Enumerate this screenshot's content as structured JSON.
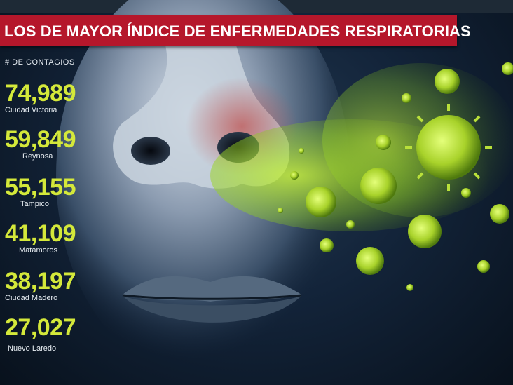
{
  "title": "LOS DE MAYOR ÍNDICE DE ENFERMEDADES RESPIRATORIAS",
  "subtitle": "# DE CONTAGIOS",
  "stats": [
    {
      "value": "74,989",
      "city": "Ciudad Victoria"
    },
    {
      "value": "59,849",
      "city": "Reynosa"
    },
    {
      "value": "55,155",
      "city": "Tampico"
    },
    {
      "value": "41,109",
      "city": "Matamoros"
    },
    {
      "value": "38,197",
      "city": "Ciudad Madero"
    },
    {
      "value": "27,027",
      "city": "Nuevo Laredo"
    }
  ],
  "colors": {
    "title_bar": "#b5172b",
    "value_text": "#d4e83a",
    "virus": "#a8d22a",
    "background": "#13243a"
  },
  "illustration": {
    "subject": "nose-and-lips-face-icon",
    "particles": "virus-icon"
  }
}
